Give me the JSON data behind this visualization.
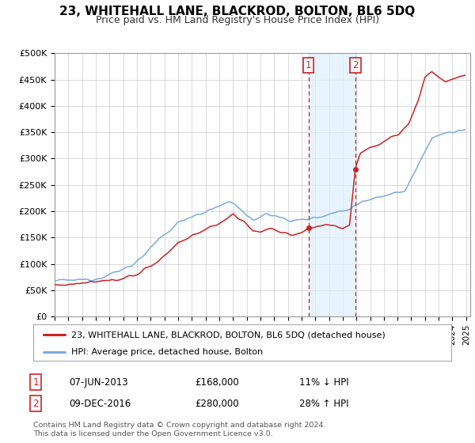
{
  "title": "23, WHITEHALL LANE, BLACKROD, BOLTON, BL6 5DQ",
  "subtitle": "Price paid vs. HM Land Registry's House Price Index (HPI)",
  "ylim": [
    0,
    500000
  ],
  "yticks": [
    0,
    50000,
    100000,
    150000,
    200000,
    250000,
    300000,
    350000,
    400000,
    450000,
    500000
  ],
  "ytick_labels": [
    "£0",
    "£50K",
    "£100K",
    "£150K",
    "£200K",
    "£250K",
    "£300K",
    "£350K",
    "£400K",
    "£450K",
    "£500K"
  ],
  "hpi_color": "#7aace0",
  "price_color": "#cc2222",
  "marker1_year": 2013.5,
  "marker2_year": 2016.92,
  "annotation1": "07-JUN-2013",
  "annotation1_price": "£168,000",
  "annotation1_hpi": "11% ↓ HPI",
  "annotation2": "09-DEC-2016",
  "annotation2_price": "£280,000",
  "annotation2_hpi": "28% ↑ HPI",
  "legend1": "23, WHITEHALL LANE, BLACKROD, BOLTON, BL6 5DQ (detached house)",
  "legend2": "HPI: Average price, detached house, Bolton",
  "footnote": "Contains HM Land Registry data © Crown copyright and database right 2024.\nThis data is licensed under the Open Government Licence v3.0.",
  "bg_color": "#ffffff",
  "plot_bg": "#ffffff",
  "grid_color": "#cccccc",
  "shade_color": "#ddeeff",
  "xlim_left": 1995,
  "xlim_right": 2025.3
}
